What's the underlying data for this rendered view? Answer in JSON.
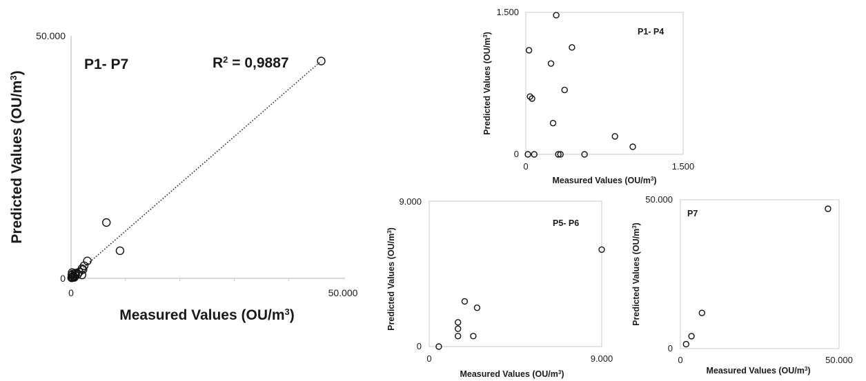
{
  "chart_data": [
    {
      "id": "main",
      "type": "scatter",
      "panel_label": "P1- P7",
      "annotation": "R² = 0,9887",
      "annotation_parts": {
        "prefix": "R",
        "sup": "2",
        "rest": " = 0,9887"
      },
      "xlabel": "Measured Values (OU/m3)",
      "ylabel": "Predicted Values (OU/m3)",
      "xlabel_parts": {
        "text": "Measured Values (OU/m",
        "sup": "3",
        "close": ")"
      },
      "ylabel_parts": {
        "text": "Predicted Values (OU/m",
        "sup": "3",
        "close": ")"
      },
      "xlim": [
        0,
        50000
      ],
      "ylim": [
        0,
        50000
      ],
      "x_tick_labels": {
        "min": "0",
        "max": "50.000"
      },
      "y_tick_labels": {
        "min": "0",
        "max": "50.000"
      },
      "trendline": {
        "x": [
          0,
          46000
        ],
        "y": [
          0,
          44800
        ]
      },
      "points": [
        {
          "x": 100,
          "y": 100
        },
        {
          "x": 200,
          "y": 300
        },
        {
          "x": 300,
          "y": 150
        },
        {
          "x": 400,
          "y": 500
        },
        {
          "x": 150,
          "y": 700
        },
        {
          "x": 300,
          "y": 900
        },
        {
          "x": 500,
          "y": 400
        },
        {
          "x": 600,
          "y": 200
        },
        {
          "x": 700,
          "y": 1000
        },
        {
          "x": 200,
          "y": 1200
        },
        {
          "x": 800,
          "y": 600
        },
        {
          "x": 900,
          "y": 1100
        },
        {
          "x": 1200,
          "y": 800
        },
        {
          "x": 1500,
          "y": 1300
        },
        {
          "x": 2000,
          "y": 700
        },
        {
          "x": 2200,
          "y": 1800
        },
        {
          "x": 2400,
          "y": 2600
        },
        {
          "x": 2000,
          "y": 2000
        },
        {
          "x": 3000,
          "y": 3600
        },
        {
          "x": 6500,
          "y": 11500
        },
        {
          "x": 9000,
          "y": 5700
        },
        {
          "x": 46000,
          "y": 44800
        }
      ]
    },
    {
      "id": "p1p4",
      "type": "scatter",
      "panel_label": "P1- P4",
      "xlabel": "Measured Values (OU/m3)",
      "ylabel": "Predicted Values (OU/m3)",
      "xlabel_parts": {
        "text": "Measured Values (OU/m",
        "sup": "3",
        "close": ")"
      },
      "ylabel_parts": {
        "text": "Predicted Values (OU/m",
        "sup": "3",
        "close": ")"
      },
      "xlim": [
        0,
        1500
      ],
      "ylim": [
        0,
        1500
      ],
      "x_tick_labels": {
        "min": "0",
        "max": "1.500"
      },
      "y_tick_labels": {
        "min": "0",
        "max": "1.500"
      },
      "points": [
        {
          "x": 30,
          "y": 1100
        },
        {
          "x": 290,
          "y": 1470
        },
        {
          "x": 440,
          "y": 1130
        },
        {
          "x": 240,
          "y": 960
        },
        {
          "x": 370,
          "y": 680
        },
        {
          "x": 40,
          "y": 610
        },
        {
          "x": 60,
          "y": 590
        },
        {
          "x": 260,
          "y": 330
        },
        {
          "x": 850,
          "y": 190
        },
        {
          "x": 1020,
          "y": 80
        },
        {
          "x": 20,
          "y": 0
        },
        {
          "x": 80,
          "y": 0
        },
        {
          "x": 310,
          "y": 0
        },
        {
          "x": 330,
          "y": 0
        },
        {
          "x": 560,
          "y": 0
        }
      ]
    },
    {
      "id": "p5p6",
      "type": "scatter",
      "panel_label": "P5- P6",
      "xlabel": "Measured Values (OU/m3)",
      "ylabel": "Predicted Values (OU/m3)",
      "xlabel_parts": {
        "text": "Measured Values (OU/m",
        "sup": "3",
        "close": ")"
      },
      "ylabel_parts": {
        "text": "Predicted Values (OU/m",
        "sup": "3",
        "close": ")"
      },
      "xlim": [
        0,
        9000
      ],
      "ylim": [
        0,
        9000
      ],
      "x_tick_labels": {
        "min": "0",
        "max": "9.000"
      },
      "y_tick_labels": {
        "min": "0",
        "max": "9.000"
      },
      "points": [
        {
          "x": 500,
          "y": 0
        },
        {
          "x": 1500,
          "y": 1500
        },
        {
          "x": 1500,
          "y": 1100
        },
        {
          "x": 1500,
          "y": 650
        },
        {
          "x": 1850,
          "y": 2800
        },
        {
          "x": 2300,
          "y": 650
        },
        {
          "x": 2500,
          "y": 2400
        },
        {
          "x": 9000,
          "y": 6000
        }
      ]
    },
    {
      "id": "p7",
      "type": "scatter",
      "panel_label": "P7",
      "xlabel": "Measured Values (OU/m3)",
      "ylabel": "Predicted Values (OU/m3)",
      "xlabel_parts": {
        "text": "Measured Values (OU/m",
        "sup": "3",
        "close": ")"
      },
      "ylabel_parts": {
        "text": "Predicted Values (OU/m",
        "sup": "3",
        "close": ")"
      },
      "xlim": [
        0,
        50000
      ],
      "ylim": [
        0,
        50000
      ],
      "x_tick_labels": {
        "min": "0",
        "max": "50.000"
      },
      "y_tick_labels": {
        "min": "0",
        "max": "50.000"
      },
      "points": [
        {
          "x": 1800,
          "y": 1500
        },
        {
          "x": 3500,
          "y": 4200
        },
        {
          "x": 6800,
          "y": 12000
        },
        {
          "x": 46500,
          "y": 47000
        }
      ]
    }
  ]
}
